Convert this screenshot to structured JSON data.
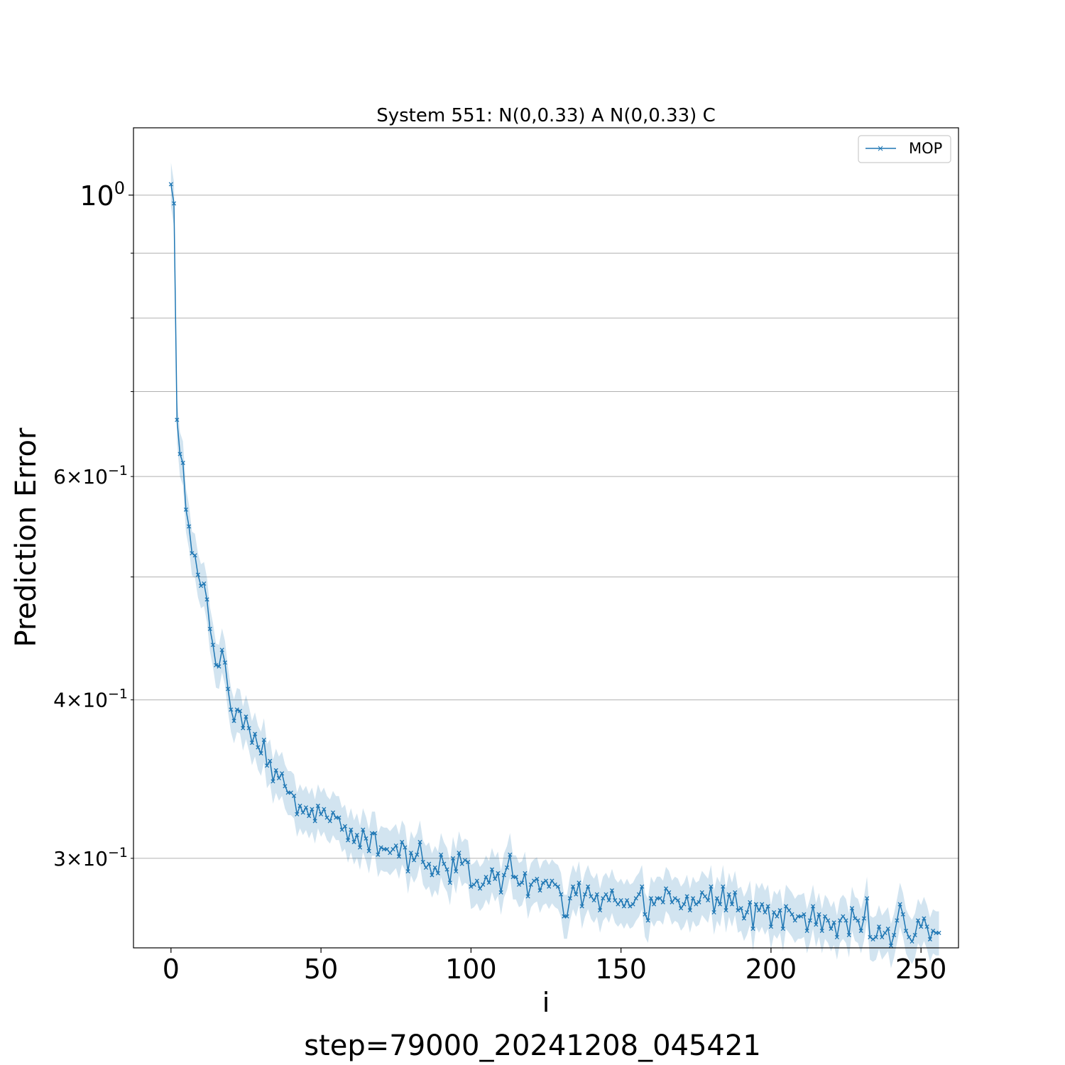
{
  "chart_data": {
    "type": "line",
    "title": "System 551: N(0,0.33) A N(0,0.33) C",
    "xlabel": "i",
    "ylabel": "Prediction Error",
    "footer": "step=79000_20241208_045421",
    "y_scale": "log",
    "xlim": [
      -12.5,
      262.5
    ],
    "ylim": [
      0.255,
      1.13
    ],
    "grid": "y-major-and-minor",
    "legend_position": "top-right",
    "x_ticks": [
      {
        "value": 0,
        "label": "0"
      },
      {
        "value": 50,
        "label": "50"
      },
      {
        "value": 100,
        "label": "100"
      },
      {
        "value": 150,
        "label": "150"
      },
      {
        "value": 200,
        "label": "200"
      },
      {
        "value": 250,
        "label": "250"
      }
    ],
    "y_major_ticks": [
      {
        "value": 1.0,
        "base": "10",
        "exp": "0",
        "mantissa": ""
      }
    ],
    "y_minor_ticks": [
      {
        "value": 0.3,
        "base": "10",
        "exp": "−1",
        "mantissa": "3"
      },
      {
        "value": 0.4,
        "base": "10",
        "exp": "−1",
        "mantissa": "4"
      },
      {
        "value": 0.5,
        "base": "",
        "exp": "",
        "mantissa": ""
      },
      {
        "value": 0.6,
        "base": "10",
        "exp": "−1",
        "mantissa": "6"
      },
      {
        "value": 0.7,
        "base": "",
        "exp": "",
        "mantissa": ""
      },
      {
        "value": 0.8,
        "base": "",
        "exp": "",
        "mantissa": ""
      },
      {
        "value": 0.9,
        "base": "",
        "exp": "",
        "mantissa": ""
      }
    ],
    "colors": {
      "line": "#1f77b4",
      "band": "#1f77b4",
      "grid": "#b0b0b0"
    },
    "series": [
      {
        "name": "MOP",
        "marker": "x",
        "band_halfwidth_fraction": 0.04,
        "x_start": 0,
        "values": [
          1.02,
          0.985,
          0.665,
          0.625,
          0.615,
          0.565,
          0.548,
          0.522,
          0.52,
          0.502,
          0.492,
          0.494,
          0.48,
          0.455,
          0.442,
          0.426,
          0.425,
          0.438,
          0.428,
          0.408,
          0.393,
          0.385,
          0.393,
          0.392,
          0.38,
          0.388,
          0.38,
          0.37,
          0.376,
          0.367,
          0.363,
          0.372,
          0.355,
          0.358,
          0.345,
          0.352,
          0.347,
          0.35,
          0.342,
          0.338,
          0.338,
          0.336,
          0.325,
          0.33,
          0.326,
          0.329,
          0.324,
          0.328,
          0.321,
          0.33,
          0.325,
          0.328,
          0.323,
          0.321,
          0.326,
          0.323,
          0.323,
          0.316,
          0.318,
          0.31,
          0.316,
          0.309,
          0.313,
          0.306,
          0.316,
          0.311,
          0.304,
          0.314,
          0.314,
          0.302,
          0.306,
          0.305,
          0.305,
          0.303,
          0.305,
          0.307,
          0.301,
          0.309,
          0.306,
          0.293,
          0.303,
          0.299,
          0.302,
          0.309,
          0.298,
          0.295,
          0.297,
          0.291,
          0.295,
          0.292,
          0.302,
          0.297,
          0.294,
          0.287,
          0.3,
          0.293,
          0.303,
          0.297,
          0.299,
          0.298,
          0.285,
          0.286,
          0.288,
          0.284,
          0.286,
          0.29,
          0.287,
          0.294,
          0.289,
          0.292,
          0.282,
          0.291,
          0.295,
          0.302,
          0.29,
          0.29,
          0.286,
          0.287,
          0.292,
          0.28,
          0.286,
          0.288,
          0.289,
          0.283,
          0.287,
          0.288,
          0.285,
          0.288,
          0.286,
          0.285,
          0.281,
          0.27,
          0.27,
          0.279,
          0.285,
          0.281,
          0.287,
          0.275,
          0.281,
          0.285,
          0.28,
          0.278,
          0.281,
          0.273,
          0.279,
          0.281,
          0.278,
          0.283,
          0.278,
          0.276,
          0.278,
          0.275,
          0.278,
          0.275,
          0.276,
          0.279,
          0.281,
          0.285,
          0.271,
          0.268,
          0.279,
          0.276,
          0.279,
          0.279,
          0.277,
          0.284,
          0.282,
          0.277,
          0.279,
          0.278,
          0.274,
          0.276,
          0.28,
          0.273,
          0.279,
          0.276,
          0.277,
          0.282,
          0.28,
          0.278,
          0.285,
          0.272,
          0.279,
          0.276,
          0.285,
          0.273,
          0.281,
          0.276,
          0.282,
          0.273,
          0.274,
          0.269,
          0.272,
          0.277,
          0.264,
          0.276,
          0.273,
          0.276,
          0.272,
          0.275,
          0.265,
          0.272,
          0.27,
          0.273,
          0.264,
          0.275,
          0.273,
          0.271,
          0.268,
          0.27,
          0.27,
          0.271,
          0.263,
          0.268,
          0.275,
          0.266,
          0.271,
          0.263,
          0.27,
          0.268,
          0.264,
          0.267,
          0.26,
          0.268,
          0.27,
          0.268,
          0.261,
          0.274,
          0.269,
          0.268,
          0.263,
          0.269,
          0.279,
          0.26,
          0.259,
          0.26,
          0.265,
          0.26,
          0.262,
          0.264,
          0.256,
          0.261,
          0.268,
          0.276,
          0.271,
          0.263,
          0.26,
          0.258,
          0.261,
          0.268,
          0.265,
          0.269,
          0.265,
          0.259,
          0.263,
          0.262,
          0.262
        ]
      }
    ]
  }
}
